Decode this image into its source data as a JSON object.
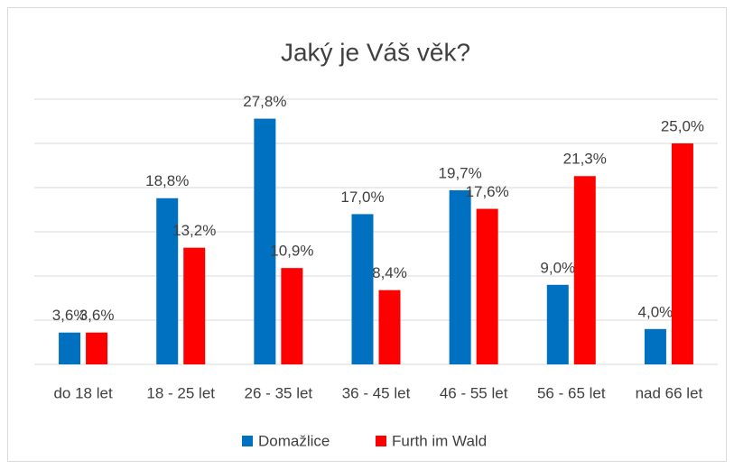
{
  "chart_data": {
    "type": "bar",
    "title": "Jaký je Váš věk?",
    "categories": [
      "do 18 let",
      "18 - 25 let",
      "26 - 35 let",
      "36 - 45 let",
      "46 - 55 let",
      "56 - 65 let",
      "nad 66 let"
    ],
    "series": [
      {
        "name": "Domažlice",
        "color": "#0070c0",
        "values": [
          3.6,
          18.8,
          27.8,
          17.0,
          19.7,
          9.0,
          4.0
        ],
        "value_labels": [
          "3,6%",
          "18,8%",
          "27,8%",
          "17,0%",
          "19,7%",
          "9,0%",
          "4,0%"
        ]
      },
      {
        "name": "Furth im Wald",
        "color": "#ff0000",
        "values": [
          3.6,
          13.2,
          10.9,
          8.4,
          17.6,
          21.3,
          25.0
        ],
        "value_labels": [
          "3,6%",
          "13,2%",
          "10,9%",
          "8,4%",
          "17,6%",
          "21,3%",
          "25,0%"
        ]
      }
    ],
    "ylim": [
      0,
      30
    ],
    "yticks": [
      0,
      5,
      10,
      15,
      20,
      25,
      30
    ],
    "grid": true,
    "legend": "bottom"
  }
}
